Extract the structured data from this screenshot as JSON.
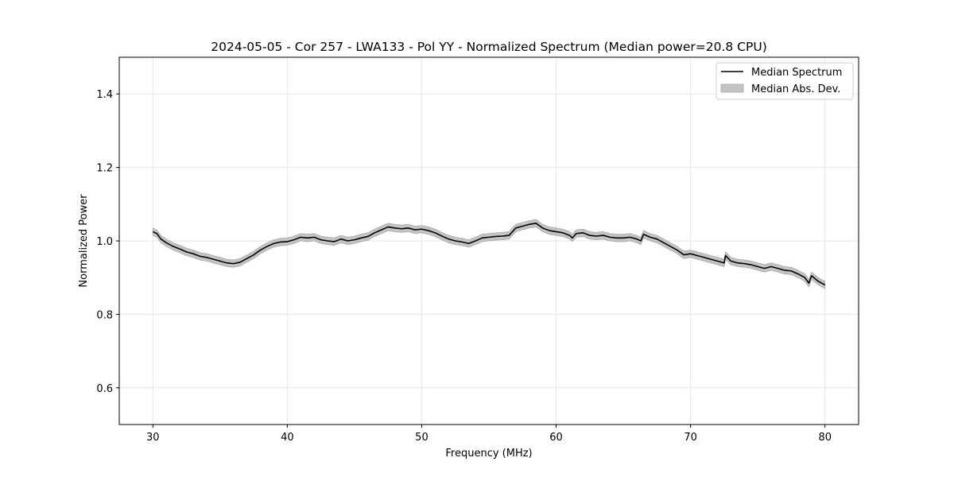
{
  "chart_data": {
    "type": "line",
    "title": "2024-05-05 - Cor 257 - LWA133 - Pol YY - Normalized Spectrum (Median power=20.8 CPU)",
    "xlabel": "Frequency (MHz)",
    "ylabel": "Normalized Power",
    "xlim": [
      27.5,
      82.5
    ],
    "ylim": [
      0.5,
      1.5
    ],
    "xticks": [
      30,
      40,
      50,
      60,
      70,
      80
    ],
    "xtick_labels": [
      "30",
      "40",
      "50",
      "60",
      "70",
      "80"
    ],
    "yticks": [
      0.6,
      0.8,
      1.0,
      1.2,
      1.4
    ],
    "ytick_labels": [
      "0.6",
      "0.8",
      "1.0",
      "1.2",
      "1.4"
    ],
    "grid": true,
    "legend_position": "top-right",
    "legend": [
      "Median Spectrum",
      "Median Abs. Dev."
    ],
    "colors": {
      "line": "#000000",
      "band": "#c4c4c4",
      "band_edge": "#a8a8a8",
      "grid": "#e6e6e6"
    },
    "series": [
      {
        "name": "Median Spectrum",
        "x": [
          30.0,
          30.3,
          30.6,
          31.0,
          31.5,
          32.0,
          32.5,
          33.0,
          33.5,
          34.0,
          34.5,
          35.0,
          35.5,
          36.0,
          36.5,
          37.0,
          37.5,
          38.0,
          38.5,
          39.0,
          39.5,
          40.0,
          40.5,
          41.0,
          41.5,
          42.0,
          42.5,
          43.0,
          43.5,
          44.0,
          44.5,
          45.0,
          45.5,
          46.0,
          46.5,
          47.0,
          47.5,
          48.0,
          48.5,
          49.0,
          49.5,
          50.0,
          50.5,
          51.0,
          51.5,
          52.0,
          52.5,
          53.0,
          53.5,
          54.0,
          54.5,
          55.0,
          55.5,
          56.0,
          56.5,
          57.0,
          57.5,
          58.0,
          58.5,
          59.0,
          59.5,
          60.0,
          60.5,
          61.0,
          61.2,
          61.5,
          62.0,
          62.5,
          63.0,
          63.5,
          64.0,
          64.5,
          65.0,
          65.5,
          66.0,
          66.3,
          66.5,
          67.0,
          67.5,
          68.0,
          68.5,
          69.0,
          69.5,
          70.0,
          70.5,
          71.0,
          71.5,
          72.0,
          72.5,
          72.6,
          73.0,
          73.5,
          74.0,
          74.5,
          75.0,
          75.5,
          76.0,
          76.5,
          77.0,
          77.5,
          78.0,
          78.5,
          78.8,
          79.0,
          79.5,
          80.0
        ],
        "values": [
          1.025,
          1.02,
          1.005,
          0.995,
          0.985,
          0.978,
          0.97,
          0.965,
          0.958,
          0.955,
          0.95,
          0.945,
          0.94,
          0.938,
          0.942,
          0.952,
          0.962,
          0.975,
          0.985,
          0.993,
          0.997,
          0.998,
          1.003,
          1.01,
          1.008,
          1.01,
          1.003,
          1.0,
          0.998,
          1.005,
          1.0,
          1.003,
          1.008,
          1.012,
          1.022,
          1.03,
          1.038,
          1.035,
          1.033,
          1.035,
          1.03,
          1.032,
          1.028,
          1.022,
          1.013,
          1.005,
          1.0,
          0.997,
          0.993,
          1.0,
          1.008,
          1.01,
          1.012,
          1.013,
          1.015,
          1.035,
          1.04,
          1.045,
          1.048,
          1.035,
          1.028,
          1.025,
          1.022,
          1.015,
          1.008,
          1.02,
          1.022,
          1.015,
          1.013,
          1.015,
          1.01,
          1.008,
          1.008,
          1.01,
          1.005,
          1.0,
          1.018,
          1.01,
          1.005,
          0.995,
          0.985,
          0.975,
          0.962,
          0.965,
          0.96,
          0.955,
          0.95,
          0.945,
          0.94,
          0.96,
          0.945,
          0.94,
          0.938,
          0.935,
          0.93,
          0.925,
          0.93,
          0.925,
          0.92,
          0.918,
          0.91,
          0.9,
          0.885,
          0.905,
          0.89,
          0.88
        ]
      }
    ],
    "band_halfwidth": 0.01
  }
}
